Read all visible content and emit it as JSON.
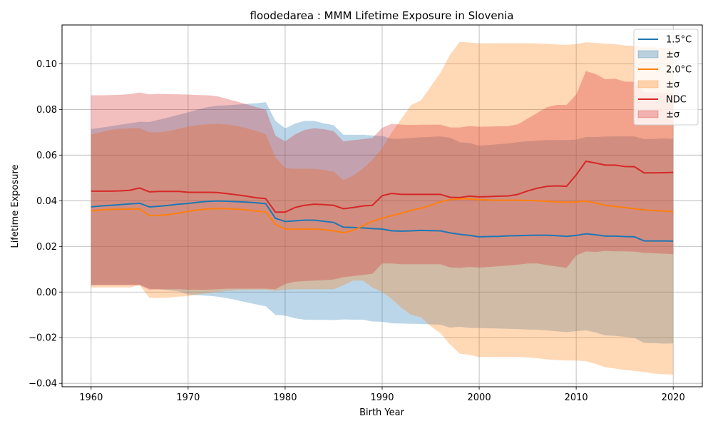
{
  "chart_data": {
    "type": "line",
    "title": "floodedarea : MMM Lifetime Exposure in Slovenia",
    "xlabel": "Birth Year",
    "ylabel": "Lifetime Exposure",
    "xlim": [
      1957,
      2023
    ],
    "ylim": [
      -0.0415,
      0.117
    ],
    "xticks": [
      1960,
      1970,
      1980,
      1990,
      2000,
      2010,
      2020
    ],
    "yticks": [
      -0.04,
      -0.02,
      0.0,
      0.02,
      0.04,
      0.06,
      0.08,
      0.1
    ],
    "ytick_labels": [
      "−0.04",
      "−0.02",
      "0.00",
      "0.02",
      "0.04",
      "0.06",
      "0.08",
      "0.10"
    ],
    "grid": true,
    "legend_position": "top-right",
    "x": [
      1960,
      1961,
      1962,
      1963,
      1964,
      1965,
      1966,
      1967,
      1968,
      1969,
      1970,
      1971,
      1972,
      1973,
      1974,
      1975,
      1976,
      1977,
      1978,
      1979,
      1980,
      1981,
      1982,
      1983,
      1984,
      1985,
      1986,
      1987,
      1988,
      1989,
      1990,
      1991,
      1992,
      1993,
      1994,
      1995,
      1996,
      1997,
      1998,
      1999,
      2000,
      2001,
      2002,
      2003,
      2004,
      2005,
      2006,
      2007,
      2008,
      2009,
      2010,
      2011,
      2012,
      2013,
      2014,
      2015,
      2016,
      2017,
      2018,
      2019,
      2020
    ],
    "series": [
      {
        "name": "1.5°C",
        "band_name": "±σ",
        "color": "#1f77b4",
        "band_color": "#1f77b4",
        "band_opacity": 0.3,
        "mean": [
          0.0373,
          0.0377,
          0.038,
          0.0383,
          0.0386,
          0.0389,
          0.0373,
          0.0376,
          0.038,
          0.0385,
          0.0388,
          0.0393,
          0.0397,
          0.0399,
          0.0398,
          0.0396,
          0.0394,
          0.0391,
          0.0387,
          0.0323,
          0.0309,
          0.0312,
          0.0315,
          0.0315,
          0.031,
          0.0305,
          0.0284,
          0.0283,
          0.0281,
          0.0278,
          0.0276,
          0.0268,
          0.0267,
          0.0268,
          0.027,
          0.0269,
          0.0268,
          0.0259,
          0.0253,
          0.0248,
          0.0242,
          0.0243,
          0.0244,
          0.0246,
          0.0247,
          0.0248,
          0.0249,
          0.0249,
          0.0247,
          0.0244,
          0.0248,
          0.0255,
          0.0251,
          0.0245,
          0.0245,
          0.0243,
          0.0242,
          0.0224,
          0.0224,
          0.0224,
          0.0223
        ],
        "upper": [
          0.0714,
          0.072,
          0.0726,
          0.0733,
          0.0739,
          0.0746,
          0.0745,
          0.0755,
          0.0765,
          0.0776,
          0.0787,
          0.08,
          0.081,
          0.0816,
          0.0818,
          0.0821,
          0.0824,
          0.0827,
          0.0832,
          0.075,
          0.0717,
          0.0738,
          0.075,
          0.075,
          0.0739,
          0.0731,
          0.0689,
          0.0689,
          0.0689,
          0.0686,
          0.0684,
          0.0671,
          0.0672,
          0.0675,
          0.0678,
          0.068,
          0.0682,
          0.0676,
          0.0656,
          0.0653,
          0.0641,
          0.0644,
          0.0648,
          0.0651,
          0.0657,
          0.0661,
          0.0663,
          0.0666,
          0.0666,
          0.0666,
          0.0668,
          0.0679,
          0.0679,
          0.0681,
          0.0682,
          0.0682,
          0.0682,
          0.067,
          0.0671,
          0.0673,
          0.0671
        ],
        "lower": [
          0.003,
          0.0032,
          0.0032,
          0.0032,
          0.0032,
          0.0032,
          0.0015,
          0.0012,
          0.0008,
          0.0003,
          -0.0011,
          -0.0014,
          -0.0016,
          -0.002,
          -0.0027,
          -0.0035,
          -0.0045,
          -0.0054,
          -0.0062,
          -0.01,
          -0.0103,
          -0.0115,
          -0.0121,
          -0.0122,
          -0.0122,
          -0.0123,
          -0.012,
          -0.0121,
          -0.0121,
          -0.0129,
          -0.013,
          -0.0137,
          -0.0138,
          -0.0139,
          -0.014,
          -0.0142,
          -0.0143,
          -0.0156,
          -0.0152,
          -0.0157,
          -0.0158,
          -0.0159,
          -0.016,
          -0.0161,
          -0.0162,
          -0.0164,
          -0.0165,
          -0.0168,
          -0.0172,
          -0.0176,
          -0.0171,
          -0.0168,
          -0.0177,
          -0.019,
          -0.0192,
          -0.0196,
          -0.02,
          -0.0223,
          -0.0224,
          -0.0226,
          -0.0225
        ]
      },
      {
        "name": "2.0°C",
        "band_name": "±σ",
        "color": "#ff7f0e",
        "band_color": "#ff7f0e",
        "band_opacity": 0.3,
        "mean": [
          0.0355,
          0.036,
          0.0362,
          0.0363,
          0.0363,
          0.0364,
          0.0335,
          0.0336,
          0.0339,
          0.0346,
          0.0353,
          0.036,
          0.0364,
          0.0366,
          0.0365,
          0.0363,
          0.036,
          0.0355,
          0.035,
          0.0297,
          0.0276,
          0.0275,
          0.0276,
          0.0276,
          0.0273,
          0.0268,
          0.026,
          0.027,
          0.029,
          0.031,
          0.0323,
          0.0335,
          0.0345,
          0.0358,
          0.0367,
          0.038,
          0.0395,
          0.0405,
          0.0408,
          0.0408,
          0.0405,
          0.0403,
          0.0402,
          0.0402,
          0.0402,
          0.0401,
          0.04,
          0.0397,
          0.0395,
          0.0393,
          0.0395,
          0.0398,
          0.039,
          0.038,
          0.0375,
          0.037,
          0.0365,
          0.036,
          0.0357,
          0.0355,
          0.0353
        ],
        "upper": [
          0.069,
          0.07,
          0.071,
          0.0715,
          0.0717,
          0.0718,
          0.07,
          0.07,
          0.0705,
          0.0715,
          0.0725,
          0.0732,
          0.0735,
          0.0737,
          0.0734,
          0.0728,
          0.0718,
          0.0706,
          0.0692,
          0.059,
          0.0543,
          0.054,
          0.054,
          0.054,
          0.0535,
          0.0527,
          0.049,
          0.051,
          0.054,
          0.058,
          0.063,
          0.07,
          0.076,
          0.082,
          0.084,
          0.09,
          0.096,
          0.104,
          0.1096,
          0.1093,
          0.109,
          0.109,
          0.109,
          0.109,
          0.109,
          0.109,
          0.1089,
          0.1087,
          0.1085,
          0.1083,
          0.1086,
          0.1094,
          0.1092,
          0.1088,
          0.1086,
          0.108,
          0.1078,
          0.1074,
          0.1072,
          0.107,
          0.1068
        ],
        "lower": [
          0.002,
          0.002,
          0.002,
          0.002,
          0.002,
          0.003,
          -0.0025,
          -0.0026,
          -0.0025,
          -0.002,
          -0.0018,
          -0.001,
          -0.0005,
          0.0,
          0.0005,
          0.0008,
          0.001,
          0.001,
          0.001,
          0.0005,
          0.001,
          0.0012,
          0.0012,
          0.0012,
          0.0012,
          0.0012,
          0.003,
          0.005,
          0.005,
          0.002,
          0.0,
          -0.003,
          -0.007,
          -0.01,
          -0.011,
          -0.015,
          -0.018,
          -0.023,
          -0.027,
          -0.0275,
          -0.0285,
          -0.0285,
          -0.0285,
          -0.0285,
          -0.0285,
          -0.0287,
          -0.029,
          -0.0295,
          -0.0298,
          -0.03,
          -0.03,
          -0.0303,
          -0.0315,
          -0.033,
          -0.0335,
          -0.0342,
          -0.0345,
          -0.035,
          -0.0357,
          -0.036,
          -0.0362
        ]
      },
      {
        "name": "NDC",
        "band_name": "±σ",
        "color": "#d62728",
        "band_color": "#d62728",
        "band_opacity": 0.3,
        "mean": [
          0.0442,
          0.0442,
          0.0442,
          0.0443,
          0.0446,
          0.0456,
          0.0439,
          0.0441,
          0.0441,
          0.0441,
          0.0437,
          0.0437,
          0.0437,
          0.0436,
          0.0431,
          0.0426,
          0.042,
          0.0413,
          0.0409,
          0.035,
          0.035,
          0.037,
          0.038,
          0.0385,
          0.0383,
          0.038,
          0.0365,
          0.037,
          0.0377,
          0.038,
          0.0422,
          0.0432,
          0.0428,
          0.0428,
          0.0428,
          0.0428,
          0.0428,
          0.0415,
          0.0414,
          0.042,
          0.0417,
          0.0418,
          0.042,
          0.0421,
          0.0428,
          0.0443,
          0.0455,
          0.0463,
          0.0465,
          0.0463,
          0.0513,
          0.0573,
          0.0565,
          0.0556,
          0.0556,
          0.055,
          0.0549,
          0.0522,
          0.0522,
          0.0523,
          0.0524
        ],
        "upper": [
          0.0862,
          0.0862,
          0.0863,
          0.0864,
          0.0867,
          0.0874,
          0.0866,
          0.0868,
          0.0867,
          0.0866,
          0.0865,
          0.0863,
          0.0862,
          0.0858,
          0.0846,
          0.0835,
          0.0823,
          0.081,
          0.0799,
          0.0685,
          0.066,
          0.069,
          0.071,
          0.0718,
          0.0713,
          0.0705,
          0.066,
          0.0665,
          0.067,
          0.0675,
          0.072,
          0.0737,
          0.0733,
          0.0732,
          0.0733,
          0.0733,
          0.0733,
          0.0721,
          0.0721,
          0.0727,
          0.0724,
          0.0725,
          0.0726,
          0.0727,
          0.0735,
          0.076,
          0.0785,
          0.081,
          0.082,
          0.082,
          0.0865,
          0.0968,
          0.0955,
          0.0932,
          0.0935,
          0.0922,
          0.0921,
          0.0875,
          0.0875,
          0.0873,
          0.0872
        ],
        "lower": [
          0.003,
          0.003,
          0.003,
          0.003,
          0.003,
          0.003,
          0.001,
          0.0012,
          0.0012,
          0.0013,
          0.001,
          0.001,
          0.001,
          0.0012,
          0.0015,
          0.0015,
          0.0015,
          0.0015,
          0.0015,
          0.0012,
          0.0035,
          0.0045,
          0.0048,
          0.005,
          0.0052,
          0.0055,
          0.0065,
          0.007,
          0.0075,
          0.008,
          0.0125,
          0.0125,
          0.0122,
          0.0122,
          0.0122,
          0.0122,
          0.0122,
          0.0108,
          0.0106,
          0.011,
          0.0107,
          0.011,
          0.0113,
          0.0116,
          0.012,
          0.0125,
          0.0125,
          0.0118,
          0.0112,
          0.0106,
          0.016,
          0.0178,
          0.0175,
          0.018,
          0.0178,
          0.0178,
          0.0177,
          0.0172,
          0.017,
          0.0168,
          0.0166
        ]
      }
    ]
  }
}
